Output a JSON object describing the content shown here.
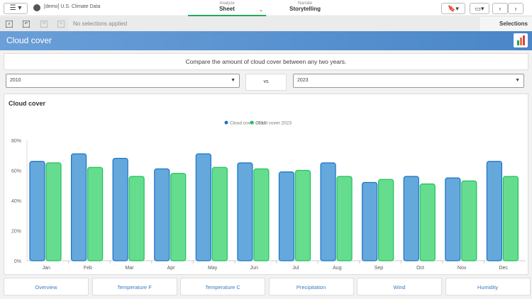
{
  "app": {
    "title": "[demo] U.S. Climate Data",
    "menu_icon": "hamburger-icon"
  },
  "nav": {
    "analyze_label": "Analyze",
    "analyze_value": "Sheet",
    "narrate_label": "Narrate",
    "narrate_value": "Storytelling"
  },
  "selections": {
    "status": "No selections applied",
    "button": "Selections"
  },
  "sheet": {
    "title": "Cloud cover",
    "description": "Compare the amount of cloud cover between any two years."
  },
  "compare": {
    "year_a": "2010",
    "vs": "vs",
    "year_b": "2023"
  },
  "colors": {
    "series_a": "#65a8dc",
    "series_a_stroke": "#1a73c4",
    "series_b": "#66dd8e",
    "series_b_stroke": "#1ec25c",
    "header": "#5b95d2"
  },
  "chart_data": {
    "type": "bar",
    "title": "Cloud cover",
    "categories": [
      "Jan",
      "Feb",
      "Mar",
      "Apr",
      "May",
      "Jun",
      "Jul",
      "Aug",
      "Sep",
      "Oct",
      "Nov",
      "Dec"
    ],
    "series": [
      {
        "name": "Cloud cover 2010",
        "values": [
          66,
          71,
          68,
          61,
          71,
          65,
          59,
          65,
          52,
          56,
          55,
          66
        ]
      },
      {
        "name": "Cloud cover 2023",
        "values": [
          65,
          62,
          56,
          58,
          62,
          61,
          60,
          56,
          54,
          51,
          53,
          56
        ]
      }
    ],
    "yticks": [
      "0%",
      "20%",
      "40%",
      "60%",
      "80%"
    ],
    "ylim": [
      0,
      80
    ],
    "legend": "top-center"
  },
  "bottom_tabs": [
    "Overview",
    "Temperature F",
    "Temperature C",
    "Precipitation",
    "Wind",
    "Humidity"
  ]
}
